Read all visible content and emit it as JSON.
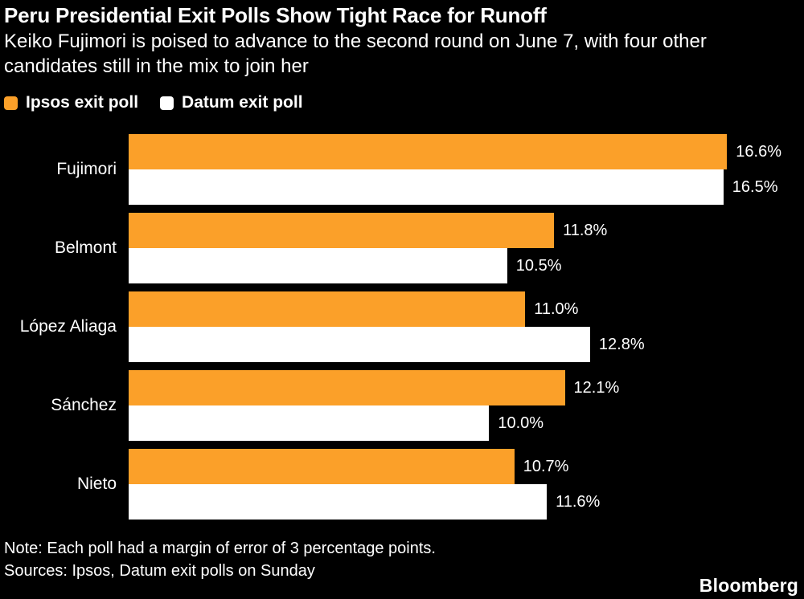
{
  "header": {
    "title": "Peru Presidential Exit Polls Show Tight Race for Runoff",
    "subtitle": "Keiko Fujimori is poised to advance to the second round on June 7, with four other candidates still in the mix to join her"
  },
  "legend": [
    {
      "label": "Ipsos exit poll",
      "color": "#FBA029"
    },
    {
      "label": "Datum exit poll",
      "color": "#FFFFFF"
    }
  ],
  "chart_data": {
    "type": "bar",
    "orientation": "horizontal",
    "title": "Peru Presidential Exit Polls Show Tight Race for Runoff",
    "categories": [
      "Fujimori",
      "Belmont",
      "López Aliaga",
      "Sánchez",
      "Nieto"
    ],
    "series": [
      {
        "name": "Ipsos exit poll",
        "color": "#FBA029",
        "values": [
          16.6,
          11.8,
          11.0,
          12.1,
          10.7
        ]
      },
      {
        "name": "Datum exit poll",
        "color": "#FFFFFF",
        "values": [
          16.5,
          10.5,
          12.8,
          10.0,
          11.6
        ]
      }
    ],
    "value_suffix": "%",
    "value_decimals": 1,
    "xlim": [
      0,
      18.4
    ],
    "grid": false,
    "legend_position": "top-left",
    "background": "#000000"
  },
  "footer": {
    "note": "Note: Each poll had a margin of error of 3 percentage points.",
    "sources": "Sources: Ipsos, Datum exit polls on Sunday",
    "brand": "Bloomberg"
  },
  "colors": {
    "background": "#000000",
    "text": "#FFFFFF",
    "accent": "#FBA029"
  }
}
